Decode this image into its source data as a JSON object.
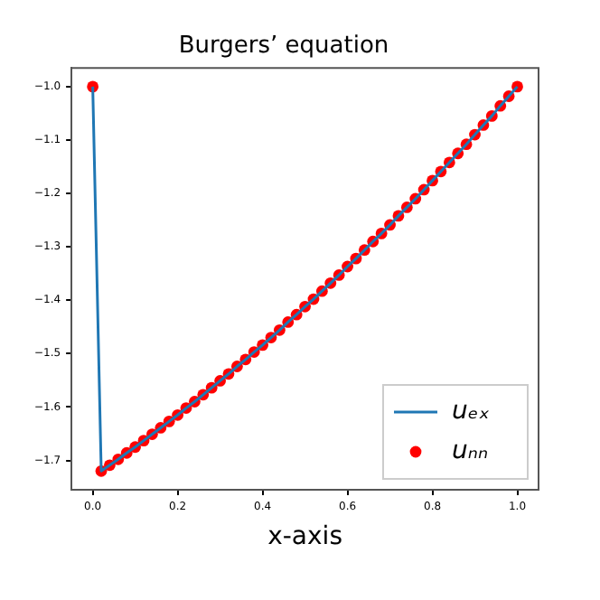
{
  "chart_data": {
    "type": "line",
    "title": "Burgers’ equation",
    "xlabel": "x-axis",
    "x": [
      0,
      0.02,
      0.04,
      0.06,
      0.08,
      0.1,
      0.12,
      0.14,
      0.16,
      0.18,
      0.2,
      0.22,
      0.24,
      0.26,
      0.28,
      0.3,
      0.32,
      0.34,
      0.36,
      0.38,
      0.4,
      0.42,
      0.44,
      0.46,
      0.48,
      0.5,
      0.52,
      0.54,
      0.56,
      0.58,
      0.6,
      0.62,
      0.64,
      0.66,
      0.68,
      0.7,
      0.72,
      0.74,
      0.76,
      0.78,
      0.8,
      0.82,
      0.84,
      0.86,
      0.88,
      0.9,
      0.92,
      0.94,
      0.96,
      0.98,
      1.0
    ],
    "series": [
      {
        "name": "uₑₓ",
        "type": "line",
        "color": "#1f77b4",
        "marker": "none",
        "line_style": "solid",
        "values": [
          -1.0,
          -1.72,
          -1.709,
          -1.698,
          -1.686,
          -1.675,
          -1.663,
          -1.651,
          -1.639,
          -1.627,
          -1.615,
          -1.602,
          -1.59,
          -1.577,
          -1.564,
          -1.551,
          -1.538,
          -1.524,
          -1.511,
          -1.497,
          -1.484,
          -1.47,
          -1.456,
          -1.441,
          -1.427,
          -1.412,
          -1.398,
          -1.383,
          -1.368,
          -1.353,
          -1.337,
          -1.322,
          -1.306,
          -1.29,
          -1.275,
          -1.259,
          -1.242,
          -1.226,
          -1.21,
          -1.193,
          -1.176,
          -1.159,
          -1.142,
          -1.125,
          -1.108,
          -1.09,
          -1.072,
          -1.055,
          -1.036,
          -1.018,
          -1.0
        ]
      },
      {
        "name": "uₙₙ",
        "type": "scatter",
        "color": "#ff0000",
        "marker": "circle",
        "values": [
          -1.0,
          -1.72,
          -1.709,
          -1.698,
          -1.686,
          -1.675,
          -1.663,
          -1.651,
          -1.639,
          -1.627,
          -1.615,
          -1.602,
          -1.59,
          -1.577,
          -1.564,
          -1.551,
          -1.538,
          -1.524,
          -1.511,
          -1.497,
          -1.484,
          -1.47,
          -1.456,
          -1.441,
          -1.427,
          -1.412,
          -1.398,
          -1.383,
          -1.368,
          -1.353,
          -1.337,
          -1.322,
          -1.306,
          -1.29,
          -1.275,
          -1.259,
          -1.242,
          -1.226,
          -1.21,
          -1.193,
          -1.176,
          -1.159,
          -1.142,
          -1.125,
          -1.108,
          -1.09,
          -1.072,
          -1.055,
          -1.036,
          -1.018,
          -1.0
        ]
      }
    ],
    "xlim": [
      -0.05,
      1.05
    ],
    "xticks": [
      {
        "value": 0,
        "label": "0.0"
      },
      {
        "value": 0.2,
        "label": "0.2"
      },
      {
        "value": 0.4,
        "label": "0.4"
      },
      {
        "value": 0.6,
        "label": "0.6"
      },
      {
        "value": 0.8,
        "label": "0.8"
      },
      {
        "value": 1.0,
        "label": "1.0"
      }
    ],
    "ylim": [
      -1.755,
      -0.965
    ],
    "yticks": [
      {
        "value": -1.7,
        "label": "−1.7"
      },
      {
        "value": -1.6,
        "label": "−1.6"
      },
      {
        "value": -1.5,
        "label": "−1.5"
      },
      {
        "value": -1.4,
        "label": "−1.4"
      },
      {
        "value": -1.3,
        "label": "−1.3"
      },
      {
        "value": -1.2,
        "label": "−1.2"
      },
      {
        "value": -1.1,
        "label": "−1.1"
      },
      {
        "value": -1.0,
        "label": "−1.0"
      }
    ],
    "grid": false,
    "legend": "bottom right"
  }
}
